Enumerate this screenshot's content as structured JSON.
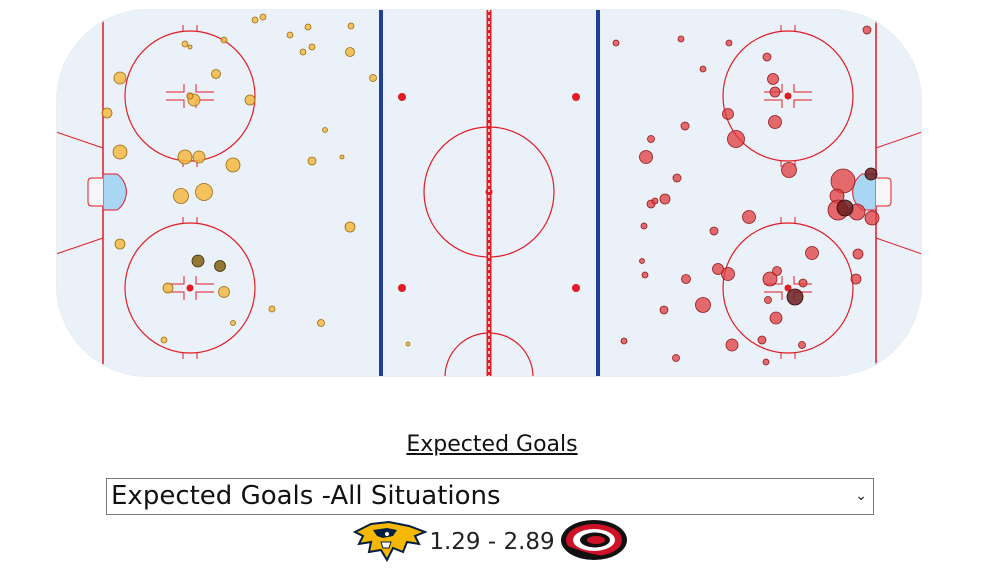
{
  "section": {
    "title": "Expected Goals"
  },
  "selector": {
    "selected": "Expected Goals -All Situations"
  },
  "score": {
    "text": "1.29 - 2.89",
    "away_team_logo": "predators-logo",
    "home_team_logo": "hurricanes-logo"
  },
  "colors": {
    "ice": "#eaf1f8",
    "red_line": "#e31b23",
    "blue_line": "#1f3f99",
    "goal_crease": "#a9d7f3",
    "away_shot": "#f5b942",
    "home_shot": "#e23b3f",
    "goal_marker_away": "#8a6a1e",
    "goal_marker_home": "#6b1e20"
  },
  "shots": {
    "away": [
      [
        185,
        44,
        3
      ],
      [
        190,
        47,
        2
      ],
      [
        224,
        40,
        3
      ],
      [
        255,
        20,
        3
      ],
      [
        263,
        17,
        3
      ],
      [
        308,
        27,
        3
      ],
      [
        290,
        35,
        3
      ],
      [
        303,
        52,
        3
      ],
      [
        312,
        47,
        3
      ],
      [
        351,
        26,
        3
      ],
      [
        350,
        52,
        4.5
      ],
      [
        120,
        78,
        6
      ],
      [
        107,
        113,
        5
      ],
      [
        216,
        74,
        4.5
      ],
      [
        250,
        100,
        5
      ],
      [
        194,
        100,
        6
      ],
      [
        190,
        96,
        3
      ],
      [
        120,
        152,
        7
      ],
      [
        185,
        157,
        7
      ],
      [
        199,
        157,
        6
      ],
      [
        233,
        165,
        7
      ],
      [
        181,
        196,
        7.5
      ],
      [
        204,
        192,
        8.5
      ],
      [
        325,
        130,
        2.5
      ],
      [
        342,
        157,
        2
      ],
      [
        312,
        161,
        4
      ],
      [
        373,
        78,
        3.5
      ],
      [
        350,
        227,
        5
      ],
      [
        120,
        244,
        5
      ],
      [
        168,
        288,
        5
      ],
      [
        224,
        292,
        5.5
      ],
      [
        272,
        309,
        3
      ],
      [
        233,
        323,
        2.5
      ],
      [
        321,
        323,
        3.5
      ],
      [
        164,
        340,
        3
      ],
      [
        408,
        344,
        2
      ]
    ],
    "away_goals": [
      [
        198,
        261,
        6
      ],
      [
        220,
        266,
        5.5
      ]
    ],
    "home": [
      [
        867,
        30,
        4
      ],
      [
        616,
        43,
        3
      ],
      [
        681,
        39,
        3
      ],
      [
        729,
        43,
        3
      ],
      [
        767,
        57,
        4
      ],
      [
        703,
        69,
        3
      ],
      [
        775,
        92,
        5
      ],
      [
        773,
        79,
        5.5
      ],
      [
        728,
        114,
        5.5
      ],
      [
        775,
        122,
        6.5
      ],
      [
        736,
        139,
        8.5
      ],
      [
        685,
        126,
        4
      ],
      [
        651,
        139,
        3.5
      ],
      [
        646,
        157,
        6.5
      ],
      [
        789,
        170,
        7.5
      ],
      [
        677,
        178,
        4
      ],
      [
        843,
        181,
        12
      ],
      [
        837,
        196,
        7
      ],
      [
        665,
        199,
        5
      ],
      [
        651,
        204,
        4
      ],
      [
        655,
        201,
        3
      ],
      [
        838,
        210,
        10
      ],
      [
        857,
        212,
        8
      ],
      [
        872,
        218,
        7
      ],
      [
        749,
        217,
        6.5
      ],
      [
        644,
        226,
        3
      ],
      [
        714,
        231,
        4
      ],
      [
        812,
        253,
        6.5
      ],
      [
        858,
        254,
        5
      ],
      [
        642,
        261,
        2.5
      ],
      [
        728,
        274,
        6.5
      ],
      [
        770,
        279,
        7
      ],
      [
        718,
        269,
        5.5
      ],
      [
        777,
        271,
        4.5
      ],
      [
        856,
        279,
        5
      ],
      [
        686,
        279,
        4.5
      ],
      [
        803,
        283,
        4
      ],
      [
        768,
        300,
        3.5
      ],
      [
        703,
        305,
        7.5
      ],
      [
        664,
        310,
        4
      ],
      [
        776,
        318,
        6
      ],
      [
        624,
        341,
        3
      ],
      [
        732,
        345,
        6
      ],
      [
        762,
        340,
        4
      ],
      [
        802,
        345,
        3.5
      ],
      [
        676,
        358,
        3.5
      ],
      [
        766,
        362,
        3
      ],
      [
        645,
        275,
        3
      ]
    ],
    "home_goals": [
      [
        871,
        174,
        6
      ],
      [
        845,
        208,
        8
      ],
      [
        795,
        297,
        8
      ]
    ]
  }
}
